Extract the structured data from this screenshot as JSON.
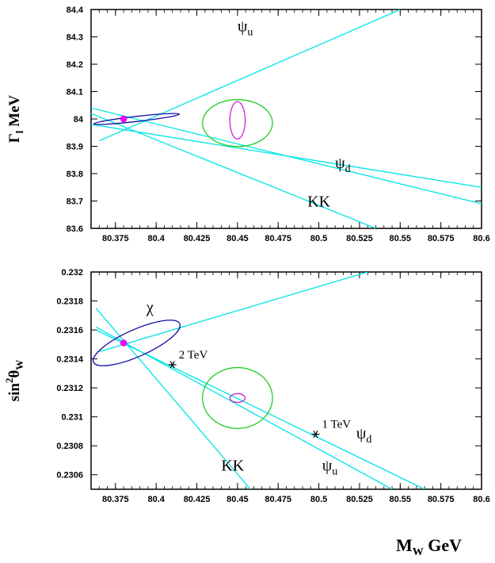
{
  "colors": {
    "cyan": "#00e5e5",
    "navy": "#1010a0",
    "green": "#22cc22",
    "magenta": "#cc22cc",
    "dot": "#ff00ff"
  },
  "xaxis_title": {
    "main": "M",
    "sub": "W",
    "unit": " GeV"
  },
  "chart_data": [
    {
      "type": "line",
      "ylabel": {
        "main": "Γ",
        "sub": "l",
        "unit": " MeV"
      },
      "xlim": [
        80.36,
        80.6
      ],
      "ylim": [
        83.6,
        84.4
      ],
      "xticks": [
        "80.375",
        "80.4",
        "80.425",
        "80.45",
        "80.475",
        "80.5",
        "80.525",
        "80.55",
        "80.575",
        "80.6"
      ],
      "yticks": [
        "83.6",
        "83.7",
        "83.8",
        "83.9",
        "84",
        "84.1",
        "84.2",
        "84.3",
        "84.4"
      ],
      "lines": [
        {
          "label": "ψ_u",
          "x": [
            80.365,
            80.55
          ],
          "y": [
            83.92,
            84.4
          ]
        },
        {
          "label": "ψ_u",
          "x": [
            80.36,
            80.6
          ],
          "y": [
            84.04,
            83.69
          ]
        },
        {
          "label": "ψ_d",
          "x": [
            80.36,
            80.6
          ],
          "y": [
            83.98,
            83.75
          ]
        },
        {
          "label": "KK",
          "x": [
            80.36,
            80.535
          ],
          "y": [
            84.02,
            83.6
          ]
        }
      ],
      "ellipses": [
        {
          "color": "navy",
          "cx": 80.388,
          "cy": 84.0,
          "rx": 0.0265,
          "ry": 0.0093,
          "angle_deg": -6.5
        },
        {
          "color": "green",
          "cx": 80.45,
          "cy": 83.985,
          "rx": 0.0215,
          "ry": 0.0855,
          "angle_deg": 0
        },
        {
          "color": "magenta",
          "cx": 80.45,
          "cy": 83.995,
          "rx": 0.0047,
          "ry": 0.068,
          "angle_deg": 0
        }
      ],
      "points": [
        {
          "x": 80.38,
          "y": 84.0
        }
      ],
      "stars": [],
      "labels": [
        {
          "text": "ψ",
          "sub": "u",
          "x": 80.45,
          "y": 84.32
        },
        {
          "text": "ψ",
          "sub": "d",
          "x": 80.51,
          "y": 83.82
        },
        {
          "text": "KK",
          "x": 80.493,
          "y": 83.68
        }
      ]
    },
    {
      "type": "line",
      "ylabel": {
        "main": "sin",
        "sup": "2",
        "mid": "θ",
        "sub": "W"
      },
      "xlim": [
        80.36,
        80.6
      ],
      "ylim": [
        0.2305,
        0.232
      ],
      "xticks": [
        "80.375",
        "80.4",
        "80.425",
        "80.45",
        "80.475",
        "80.5",
        "80.525",
        "80.55",
        "80.575",
        "80.6"
      ],
      "yticks": [
        "0.2306",
        "0.2308",
        "0.231",
        "0.2312",
        "0.2314",
        "0.2316",
        "0.2318",
        "0.232"
      ],
      "lines": [
        {
          "label": "χ",
          "x": [
            80.365,
            80.53
          ],
          "y": [
            0.23145,
            0.232
          ]
        },
        {
          "label": "KK",
          "x": [
            80.363,
            80.458
          ],
          "y": [
            0.23175,
            0.2305
          ]
        },
        {
          "label": "ψ_u",
          "x": [
            80.363,
            80.545
          ],
          "y": [
            0.23162,
            0.2305
          ]
        },
        {
          "label": "ψ_d",
          "x": [
            80.363,
            80.565
          ],
          "y": [
            0.2316,
            0.2305
          ]
        }
      ],
      "ellipses": [
        {
          "color": "navy",
          "cx": 80.388,
          "cy": 0.23151,
          "rx": 0.029,
          "ry": 9.25e-05,
          "angle_deg": -24
        },
        {
          "color": "green",
          "cx": 80.45,
          "cy": 0.23113,
          "rx": 0.0215,
          "ry": 0.00021,
          "angle_deg": 0
        },
        {
          "color": "magenta",
          "cx": 80.45,
          "cy": 0.23113,
          "rx": 0.0047,
          "ry": 3e-05,
          "angle_deg": 0
        }
      ],
      "points": [
        {
          "x": 80.38,
          "y": 0.23151
        }
      ],
      "stars": [
        {
          "x": 80.41,
          "y": 0.23136,
          "label": "2 TeV"
        },
        {
          "x": 80.498,
          "y": 0.23088,
          "label": "1 TeV"
        }
      ],
      "labels": [
        {
          "text": "χ",
          "x": 80.394,
          "y": 0.23172
        },
        {
          "text": "ψ",
          "sub": "d",
          "x": 80.523,
          "y": 0.23085
        },
        {
          "text": "ψ",
          "sub": "u",
          "x": 80.502,
          "y": 0.23063
        },
        {
          "text": "KK",
          "x": 80.44,
          "y": 0.23063
        }
      ]
    }
  ]
}
